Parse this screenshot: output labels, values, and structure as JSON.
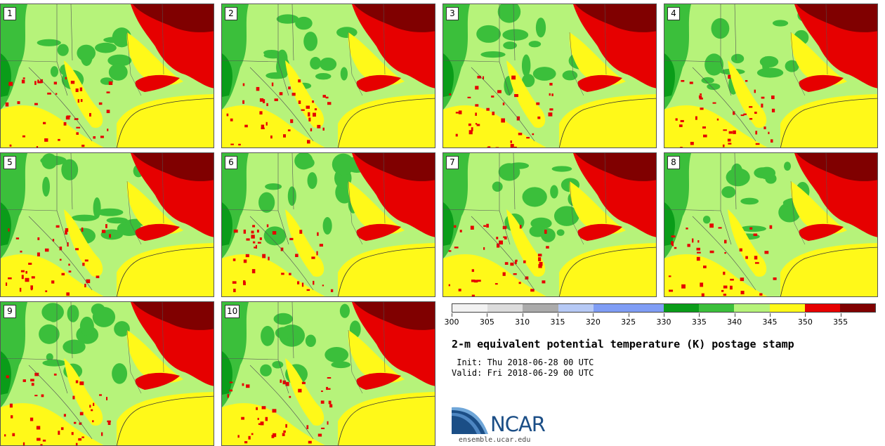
{
  "panels": [
    {
      "label": "1"
    },
    {
      "label": "2"
    },
    {
      "label": "3"
    },
    {
      "label": "4"
    },
    {
      "label": "5"
    },
    {
      "label": "6"
    },
    {
      "label": "7"
    },
    {
      "label": "8"
    },
    {
      "label": "9"
    },
    {
      "label": "10"
    }
  ],
  "colorbar": {
    "colors": [
      "#f2f2f2",
      "#dcdcdc",
      "#ababab",
      "#b6c9f5",
      "#7f9df5",
      "#7f9df5",
      "#0a9c19",
      "#3bbf3b",
      "#b6f37a",
      "#fff919",
      "#e60000",
      "#800000"
    ],
    "tick_labels": [
      "300",
      "305",
      "310",
      "315",
      "320",
      "325",
      "330",
      "335",
      "340",
      "345",
      "350",
      "355"
    ]
  },
  "map_colors": {
    "dark_green": "#0a9c19",
    "green": "#3bbf3b",
    "light_green": "#b6f37a",
    "yellow": "#fff919",
    "red": "#e60000",
    "dark_red": "#800000"
  },
  "title": "2-m equivalent potential temperature (K) postage stamp",
  "init_line": " Init: Thu 2018-06-28 00 UTC",
  "valid_line": "Valid: Fri 2018-06-29 00 UTC",
  "logo": {
    "text": "NCAR",
    "url_text": "ensemble.ucar.edu"
  }
}
